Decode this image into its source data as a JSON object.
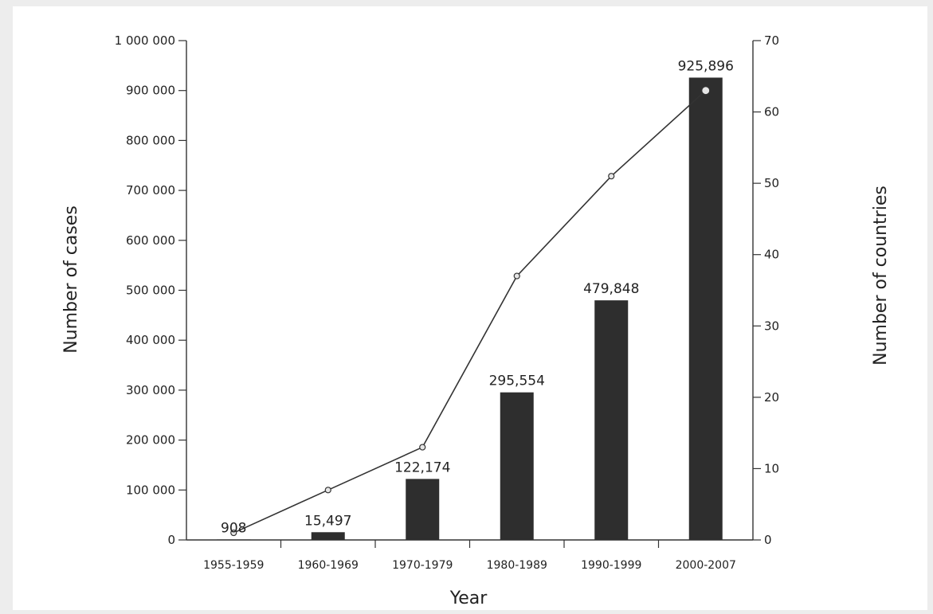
{
  "chart_data": {
    "type": "bar",
    "title": "",
    "xlabel": "Year",
    "ylabel": "Number of cases",
    "y2label": "Number of countries",
    "categories": [
      "1955-1959",
      "1960-1969",
      "1970-1979",
      "1980-1989",
      "1990-1999",
      "2000-2007"
    ],
    "series": [
      {
        "type": "bar",
        "axis": "left",
        "values": [
          908,
          15497,
          122174,
          295554,
          479848,
          925896
        ],
        "data_labels": [
          "908",
          "15,497",
          "122,174",
          "295,554",
          "479,848",
          "925,896"
        ]
      },
      {
        "type": "line",
        "axis": "right",
        "values": [
          1,
          7,
          13,
          37,
          51,
          63
        ]
      }
    ],
    "ylim": [
      0,
      1000000
    ],
    "y2lim": [
      0,
      70
    ],
    "yticks": [
      {
        "value": 0,
        "label": "0"
      },
      {
        "value": 100000,
        "label": "100 000"
      },
      {
        "value": 200000,
        "label": "200 000"
      },
      {
        "value": 300000,
        "label": "300 000"
      },
      {
        "value": 400000,
        "label": "400 000"
      },
      {
        "value": 500000,
        "label": "500 000"
      },
      {
        "value": 600000,
        "label": "600 000"
      },
      {
        "value": 700000,
        "label": "700 000"
      },
      {
        "value": 800000,
        "label": "800 000"
      },
      {
        "value": 900000,
        "label": "900 000"
      },
      {
        "value": 1000000,
        "label": "1 000 000"
      }
    ],
    "y2ticks": [
      {
        "value": 0,
        "label": "0"
      },
      {
        "value": 10,
        "label": "10"
      },
      {
        "value": 20,
        "label": "20"
      },
      {
        "value": 30,
        "label": "30"
      },
      {
        "value": 40,
        "label": "40"
      },
      {
        "value": 50,
        "label": "50"
      },
      {
        "value": 60,
        "label": "60"
      },
      {
        "value": 70,
        "label": "70"
      }
    ],
    "grid": false,
    "bar_color": "#2e2e2e",
    "line_color": "#333333"
  }
}
